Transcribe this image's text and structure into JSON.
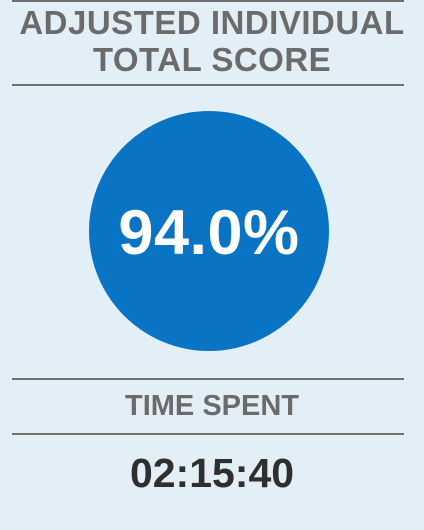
{
  "header": {
    "title_line1": "ADJUSTED INDIVIDUAL",
    "title_line2": "TOTAL SCORE"
  },
  "score": {
    "value": "94.0%",
    "circle_color": "#0a74c4"
  },
  "time": {
    "label": "TIME SPENT",
    "value": "02:15:40"
  }
}
